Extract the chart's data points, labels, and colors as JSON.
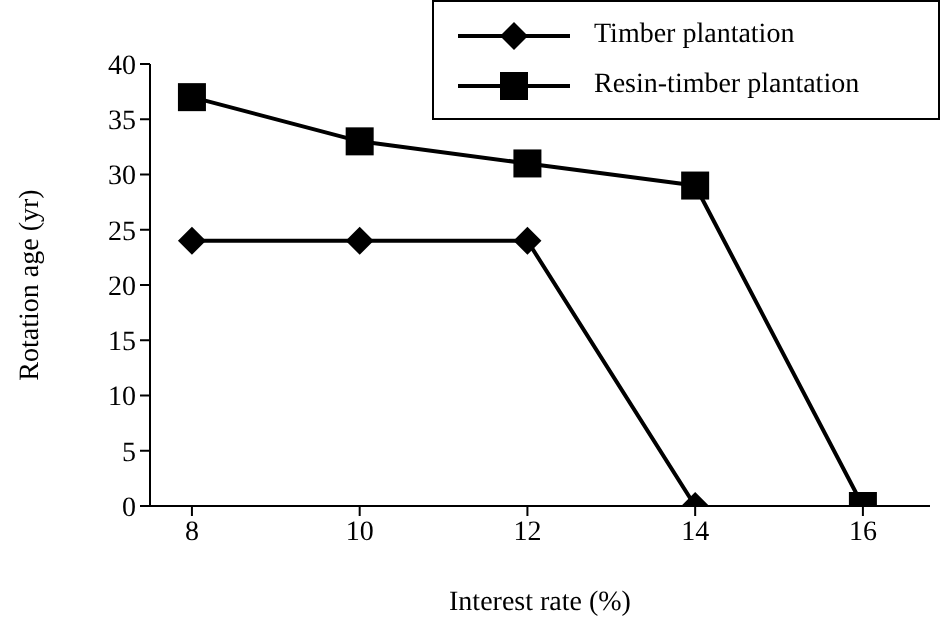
{
  "chart_data": {
    "type": "line",
    "xlabel": "Interest rate (%)",
    "ylabel": "Rotation age (yr)",
    "x": [
      8,
      10,
      12,
      14,
      16
    ],
    "xlim": [
      7.5,
      16.8
    ],
    "xticks": [
      8,
      10,
      12,
      14,
      16
    ],
    "ylim": [
      0,
      40
    ],
    "yticks": [
      0,
      5,
      10,
      15,
      20,
      25,
      30,
      35,
      40
    ],
    "series": [
      {
        "name": "Timber plantation",
        "color": "#000000",
        "marker": "diamond",
        "values": [
          24,
          24,
          24,
          0,
          null
        ]
      },
      {
        "name": "Resin-timber plantation",
        "color": "#000000",
        "marker": "square",
        "values": [
          37,
          33,
          31,
          29,
          0
        ]
      }
    ],
    "legend": "top right",
    "line_style": "solid"
  }
}
